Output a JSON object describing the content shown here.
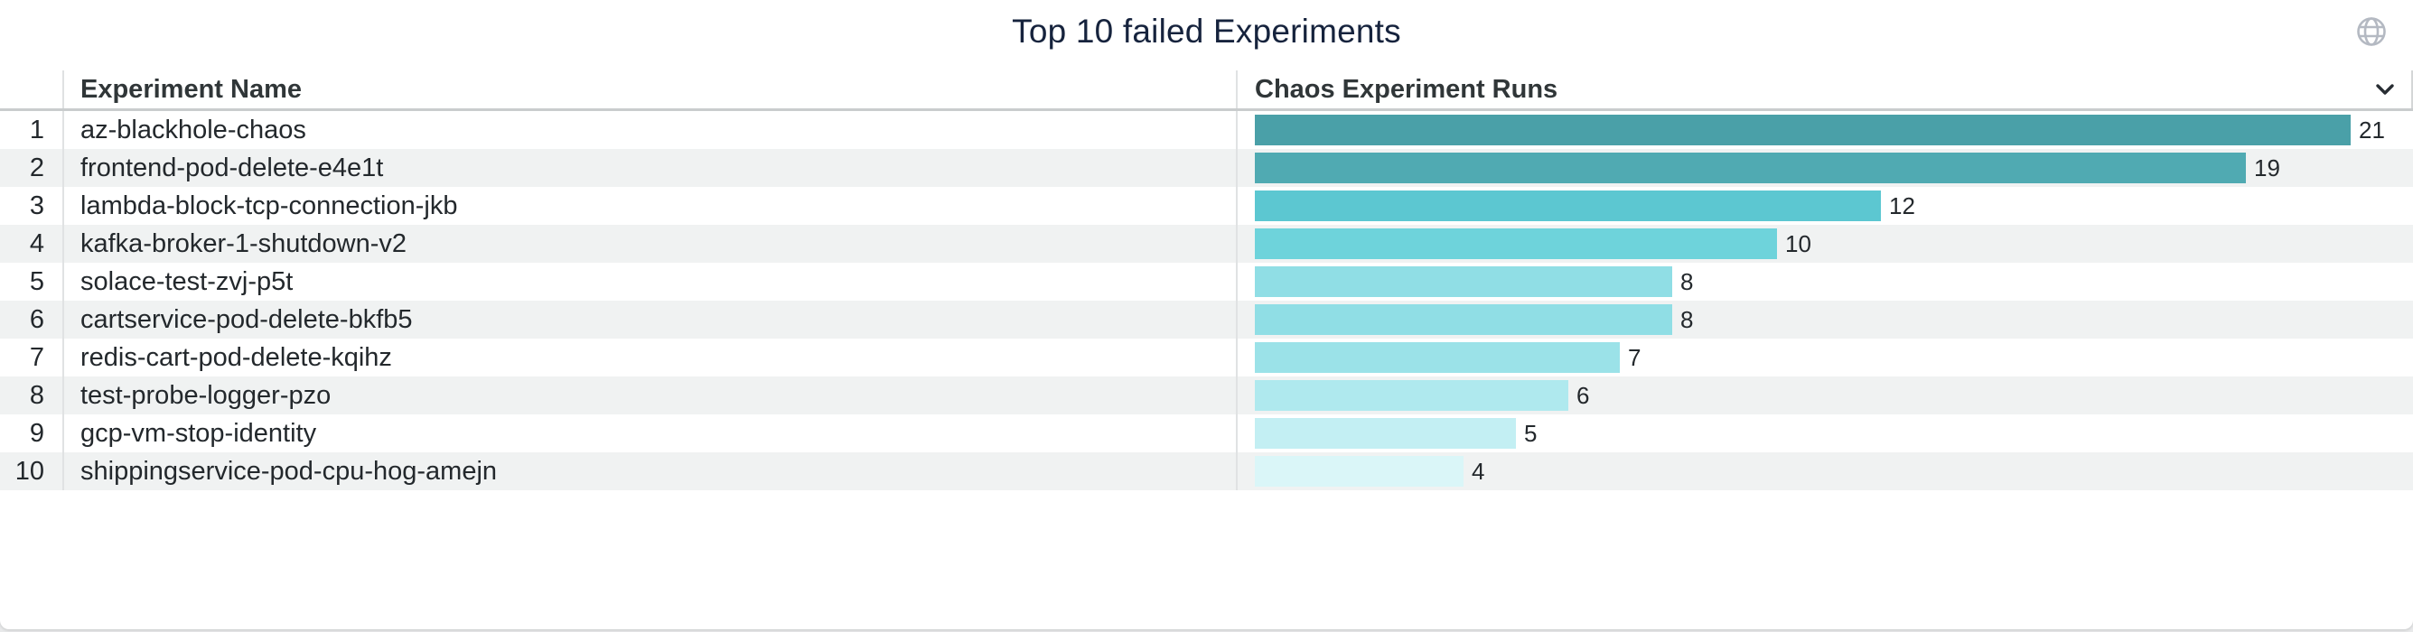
{
  "panel": {
    "title": "Top 10 failed Experiments"
  },
  "icons": {
    "globe": "globe-icon",
    "collapse": "chevron-down-icon"
  },
  "table": {
    "columns": [
      "Experiment Name",
      "Chaos Experiment Runs"
    ]
  },
  "chart_data": {
    "type": "bar",
    "orientation": "horizontal",
    "title": "Top 10 failed Experiments",
    "ranks": [
      1,
      2,
      3,
      4,
      5,
      6,
      7,
      8,
      9,
      10
    ],
    "categories": [
      "az-blackhole-chaos",
      "frontend-pod-delete-e4e1t",
      "lambda-block-tcp-connection-jkb",
      "kafka-broker-1-shutdown-v2",
      "solace-test-zvj-p5t",
      "cartservice-pod-delete-bkfb5",
      "redis-cart-pod-delete-kqihz",
      "test-probe-logger-pzo",
      "gcp-vm-stop-identity",
      "shippingservice-pod-cpu-hog-amejn"
    ],
    "values": [
      21,
      19,
      12,
      10,
      8,
      8,
      7,
      6,
      5,
      4
    ],
    "value_labels_shown": true,
    "xlim": [
      0,
      21
    ],
    "xlabel": "Chaos Experiment Runs",
    "ylabel": "Experiment Name",
    "grid": false,
    "legend": false,
    "bar_colors": [
      "#4aa0a8",
      "#50aab2",
      "#5cc7d1",
      "#6ed3db",
      "#90dee5",
      "#90dee5",
      "#9be2e8",
      "#afe9ee",
      "#c3eff3",
      "#daf6f8"
    ]
  },
  "colors": {
    "title_text": "#16233d",
    "header_text": "#303638",
    "row_text": "#23282c",
    "row_stripe": "#f0f2f2",
    "divider": "#e0e2e3",
    "header_border": "#c9cccd",
    "page_background": "#e8e9ea",
    "card_background": "#ffffff",
    "globe_icon": "#b4b9c2",
    "chevron_icon": "#282d33"
  }
}
